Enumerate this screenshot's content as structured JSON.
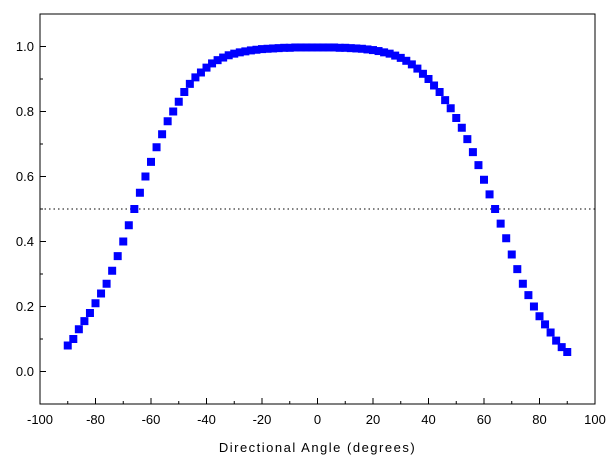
{
  "chart_data": {
    "type": "scatter",
    "title": "",
    "xlabel": "Directional Angle (degrees)",
    "ylabel": "",
    "xlim": [
      -100,
      100
    ],
    "ylim": [
      -0.1,
      1.1
    ],
    "x_ticks": [
      -100,
      -80,
      -60,
      -40,
      -20,
      0,
      20,
      40,
      60,
      80,
      100
    ],
    "y_ticks": [
      0.0,
      0.2,
      0.4,
      0.6,
      0.8,
      1.0
    ],
    "x_tick_labels": [
      "-100",
      "-80",
      "-60",
      "-40",
      "-20",
      "0",
      "20",
      "40",
      "60",
      "80",
      "100"
    ],
    "y_tick_labels": [
      "0.0",
      "0.2",
      "0.4",
      "0.6",
      "0.8",
      "1.0"
    ],
    "grid": false,
    "legend": "none",
    "marker": "square",
    "marker_color": "#0000ff",
    "reference_line": {
      "y": 0.5,
      "style": "dotted",
      "color": "#000000"
    },
    "x": [
      -90,
      -88,
      -86,
      -84,
      -82,
      -80,
      -78,
      -76,
      -74,
      -72,
      -70,
      -68,
      -66,
      -64,
      -62,
      -60,
      -58,
      -56,
      -54,
      -52,
      -50,
      -48,
      -46,
      -44,
      -42,
      -40,
      -38,
      -36,
      -34,
      -32,
      -30,
      -28,
      -26,
      -24,
      -22,
      -20,
      -18,
      -16,
      -14,
      -12,
      -10,
      -8,
      -6,
      -4,
      -2,
      0,
      2,
      4,
      6,
      8,
      10,
      12,
      14,
      16,
      18,
      20,
      22,
      24,
      26,
      28,
      30,
      32,
      34,
      36,
      38,
      40,
      42,
      44,
      46,
      48,
      50,
      52,
      54,
      56,
      58,
      60,
      62,
      64,
      66,
      68,
      70,
      72,
      74,
      76,
      78,
      80,
      82,
      84,
      86,
      88,
      90
    ],
    "y": [
      0.08,
      0.1,
      0.13,
      0.155,
      0.18,
      0.21,
      0.24,
      0.27,
      0.31,
      0.355,
      0.4,
      0.45,
      0.5,
      0.55,
      0.6,
      0.645,
      0.69,
      0.73,
      0.77,
      0.8,
      0.83,
      0.86,
      0.885,
      0.905,
      0.92,
      0.935,
      0.948,
      0.958,
      0.966,
      0.973,
      0.978,
      0.982,
      0.985,
      0.988,
      0.99,
      0.992,
      0.993,
      0.994,
      0.995,
      0.996,
      0.996,
      0.997,
      0.997,
      0.997,
      0.997,
      0.997,
      0.997,
      0.997,
      0.997,
      0.996,
      0.996,
      0.995,
      0.994,
      0.993,
      0.991,
      0.989,
      0.986,
      0.982,
      0.978,
      0.972,
      0.965,
      0.956,
      0.945,
      0.932,
      0.916,
      0.9,
      0.88,
      0.86,
      0.835,
      0.81,
      0.78,
      0.75,
      0.715,
      0.675,
      0.635,
      0.59,
      0.545,
      0.5,
      0.455,
      0.41,
      0.36,
      0.315,
      0.27,
      0.235,
      0.2,
      0.17,
      0.145,
      0.12,
      0.095,
      0.075,
      0.06
    ]
  }
}
